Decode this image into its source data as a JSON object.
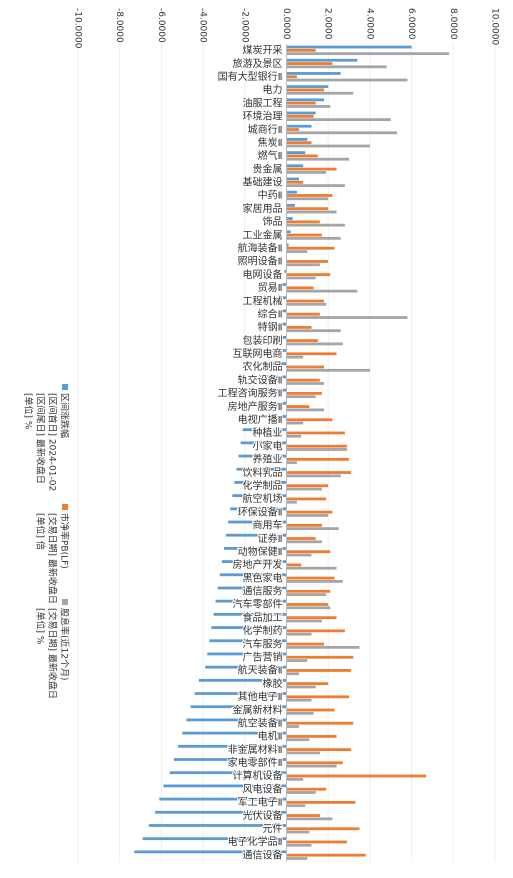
{
  "chart_data": {
    "type": "bar",
    "orientation": "horizontal",
    "categories": [
      "煤炭开采",
      "旅游及景区",
      "国有大型银行Ⅱ",
      "电力",
      "油服工程",
      "环境治理",
      "城商行Ⅱ",
      "焦炭Ⅱ",
      "燃气Ⅱ",
      "贵金属",
      "基础建设",
      "中药Ⅱ",
      "家居用品",
      "饰品",
      "工业金属",
      "航海装备Ⅱ",
      "照明设备Ⅱ",
      "电网设备",
      "贸易Ⅱ",
      "工程机械",
      "综合Ⅱ",
      "特钢Ⅱ",
      "包装印刷",
      "互联网电商",
      "农化制品",
      "轨交设备Ⅱ",
      "工程咨询服务Ⅱ",
      "房地产服务Ⅱ",
      "电视广播Ⅱ",
      "种植业",
      "小家电",
      "养殖业",
      "饮料乳品",
      "化学制品",
      "航空机场",
      "环保设备Ⅱ",
      "商用车",
      "证券Ⅱ",
      "动物保健Ⅱ",
      "房地产开发",
      "黑色家电",
      "通信服务",
      "汽车零部件",
      "食品加工",
      "化学制药",
      "汽车服务",
      "广告营销",
      "航天装备Ⅱ",
      "橡胶",
      "其他电子Ⅱ",
      "金属新材料",
      "航空装备Ⅱ",
      "电机Ⅱ",
      "非金属材料Ⅱ",
      "家电零部件Ⅱ",
      "计算机设备",
      "风电设备",
      "军工电子Ⅱ",
      "光伏设备",
      "元件",
      "电子化学品Ⅱ",
      "通信设备"
    ],
    "series": [
      {
        "name": "区间涨跌幅",
        "details": [
          "[区间首日] 2024-01-02",
          "[区间尾日] 最新收盘日",
          "[单位] %"
        ],
        "color": "#5b9bd5",
        "values": [
          6.0,
          3.4,
          2.6,
          2.0,
          1.8,
          1.4,
          1.2,
          1.0,
          0.9,
          0.8,
          0.6,
          0.5,
          0.4,
          0.3,
          0.2,
          0.1,
          0.0,
          -0.1,
          -0.2,
          -0.3,
          -0.4,
          -0.6,
          -0.7,
          -0.8,
          -0.9,
          -1.0,
          -1.1,
          -1.3,
          -1.6,
          -2.1,
          -2.2,
          -2.3,
          -2.4,
          -2.5,
          -2.6,
          -2.7,
          -2.8,
          -2.9,
          -3.0,
          -3.1,
          -3.2,
          -3.3,
          -3.4,
          -3.5,
          -3.6,
          -3.7,
          -3.8,
          -3.9,
          -4.2,
          -4.4,
          -4.6,
          -4.8,
          -5.0,
          -5.2,
          -5.4,
          -5.6,
          -5.9,
          -6.1,
          -6.3,
          -6.6,
          -6.9,
          -7.3
        ]
      },
      {
        "name": "市净率PB(LF)",
        "details": [
          "[交易日期] 最新收盘日",
          "[单位] 倍"
        ],
        "color": "#ed7d31",
        "values": [
          1.4,
          2.2,
          0.5,
          1.8,
          1.4,
          1.3,
          0.6,
          1.2,
          1.5,
          2.4,
          0.8,
          2.2,
          2.0,
          1.6,
          1.7,
          2.3,
          2.0,
          2.1,
          1.3,
          1.8,
          1.6,
          1.2,
          1.5,
          2.4,
          1.8,
          1.6,
          1.7,
          1.1,
          2.2,
          2.8,
          2.9,
          3.0,
          3.1,
          2.0,
          1.9,
          2.2,
          1.7,
          1.4,
          2.1,
          0.7,
          2.3,
          2.1,
          2.0,
          2.4,
          2.8,
          1.8,
          3.2,
          3.1,
          2.0,
          3.0,
          2.3,
          3.2,
          2.4,
          3.1,
          2.7,
          6.7,
          1.9,
          3.3,
          1.6,
          3.5,
          2.9,
          3.8
        ]
      },
      {
        "name": "股息率(近12个月)",
        "details": [
          "[交易日期] 最新收盘日",
          "[单位] %"
        ],
        "color": "#a5a5a5",
        "values": [
          7.8,
          4.8,
          5.8,
          3.2,
          2.1,
          5.0,
          5.3,
          4.0,
          3.0,
          1.9,
          2.8,
          2.0,
          2.4,
          2.8,
          2.6,
          1.0,
          1.6,
          1.4,
          3.4,
          1.9,
          5.8,
          2.6,
          2.7,
          0.8,
          4.0,
          1.8,
          1.4,
          1.8,
          0.8,
          0.7,
          2.9,
          0.5,
          2.6,
          1.7,
          0.5,
          2.0,
          2.5,
          1.7,
          1.2,
          2.4,
          2.7,
          1.9,
          2.1,
          1.7,
          1.2,
          3.5,
          1.0,
          0.6,
          1.4,
          1.2,
          1.3,
          0.6,
          1.1,
          1.6,
          2.4,
          0.8,
          1.4,
          0.9,
          2.2,
          1.1,
          1.2,
          1.0
        ]
      }
    ],
    "xlim": [
      -10,
      10
    ],
    "xticks": [
      {
        "value": -10,
        "label": "-10.0000"
      },
      {
        "value": -8,
        "label": "-8.0000"
      },
      {
        "value": -6,
        "label": "-6.0000"
      },
      {
        "value": -4,
        "label": "-4.0000"
      },
      {
        "value": -2,
        "label": "-2.0000"
      },
      {
        "value": 0,
        "label": "0.0000"
      },
      {
        "value": 2,
        "label": "2.0000"
      },
      {
        "value": 4,
        "label": "4.0000"
      },
      {
        "value": 6,
        "label": "6.0000"
      },
      {
        "value": 8,
        "label": "8.0000"
      },
      {
        "value": 10,
        "label": "10.0000"
      }
    ],
    "grid": true
  }
}
